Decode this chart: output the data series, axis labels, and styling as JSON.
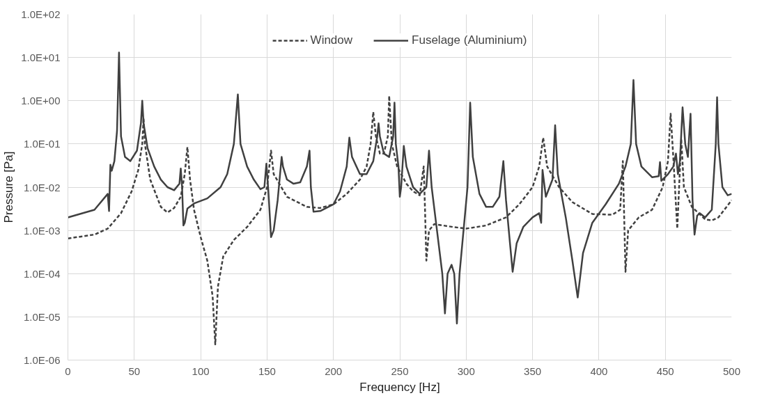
{
  "chart_data": {
    "type": "line",
    "xlabel": "Frequency [Hz]",
    "ylabel": "Pressure [Pa]",
    "log": "y",
    "grid": true,
    "legend": "top",
    "xlim": [
      0,
      500
    ],
    "xticks": [
      0,
      50,
      100,
      150,
      200,
      250,
      300,
      350,
      400,
      450,
      500
    ],
    "ylim": [
      1e-06,
      100
    ],
    "yticks": [
      {
        "value": 1e-06,
        "label": "1.0E-06"
      },
      {
        "value": 1e-05,
        "label": "1.0E-05"
      },
      {
        "value": 0.0001,
        "label": "1.0E-04"
      },
      {
        "value": 0.001,
        "label": "1.0E-03"
      },
      {
        "value": 0.01,
        "label": "1.0E-02"
      },
      {
        "value": 0.1,
        "label": "1.0E-01"
      },
      {
        "value": 1,
        "label": "1.0E+00"
      },
      {
        "value": 10,
        "label": "1.0E+01"
      },
      {
        "value": 100,
        "label": "1.0E+02"
      }
    ],
    "series": [
      {
        "name": "Window",
        "color": "#404040",
        "line_style": "dashed",
        "x": [
          0,
          20,
          30,
          40,
          48,
          53,
          56,
          57,
          58,
          62,
          70,
          75,
          80,
          85,
          88,
          90,
          92,
          95,
          100,
          105,
          109,
          111,
          113,
          117,
          125,
          135,
          145,
          150,
          153,
          155,
          165,
          180,
          190,
          200,
          210,
          220,
          225,
          228,
          230,
          232,
          235,
          238,
          241,
          242,
          244,
          248,
          255,
          260,
          265,
          268,
          269,
          270,
          272,
          276,
          290,
          300,
          315,
          330,
          340,
          350,
          355,
          358,
          361,
          370,
          380,
          395,
          410,
          416,
          418,
          420,
          422,
          430,
          440,
          448,
          452,
          454,
          456,
          459,
          462,
          464,
          470,
          480,
          485,
          490,
          500
        ],
        "values": [
          0.00065,
          0.0008,
          0.0011,
          0.0025,
          0.008,
          0.025,
          0.1,
          0.4,
          0.1,
          0.015,
          0.0035,
          0.0026,
          0.0033,
          0.006,
          0.02,
          0.085,
          0.015,
          0.003,
          0.0007,
          0.0002,
          3e-05,
          2.3e-06,
          5e-05,
          0.00025,
          0.0006,
          0.0012,
          0.003,
          0.01,
          0.07,
          0.02,
          0.006,
          0.0035,
          0.0033,
          0.004,
          0.007,
          0.015,
          0.03,
          0.1,
          0.55,
          0.15,
          0.06,
          0.06,
          0.15,
          1.3,
          0.1,
          0.03,
          0.012,
          0.008,
          0.0065,
          0.03,
          0.003,
          0.0002,
          0.001,
          0.0014,
          0.0012,
          0.0011,
          0.0013,
          0.002,
          0.004,
          0.01,
          0.03,
          0.14,
          0.03,
          0.01,
          0.0045,
          0.0024,
          0.0023,
          0.003,
          0.04,
          0.00011,
          0.001,
          0.002,
          0.003,
          0.01,
          0.04,
          0.5,
          0.05,
          0.0011,
          0.13,
          0.01,
          0.0035,
          0.0018,
          0.0017,
          0.002,
          0.005
        ]
      },
      {
        "name": "Fuselage (Aluminium)",
        "color": "#404040",
        "line_style": "solid",
        "x": [
          0,
          20,
          30,
          31,
          32,
          33,
          35,
          37,
          38.5,
          40,
          43,
          47,
          52,
          55,
          56,
          57,
          60,
          65,
          70,
          75,
          80,
          84,
          85,
          86,
          87,
          88,
          90,
          95,
          105,
          115,
          120,
          125,
          128,
          130,
          135,
          140,
          145,
          148,
          149.5,
          151,
          153,
          155,
          158,
          161,
          162,
          165,
          170,
          175,
          180,
          182,
          183,
          185,
          190,
          200,
          205,
          210,
          212,
          214,
          220,
          225,
          230,
          233,
          234,
          235,
          238,
          242,
          245,
          246,
          247,
          249,
          250,
          251,
          253,
          255,
          260,
          265,
          270,
          272,
          274,
          278,
          282,
          284,
          286,
          289,
          291,
          293,
          295,
          298,
          301,
          303,
          305,
          310,
          315,
          320,
          325,
          328,
          330,
          333,
          335,
          338,
          343,
          350,
          355,
          356.5,
          357.5,
          360,
          365,
          367,
          369,
          375,
          380,
          384,
          388,
          395,
          405,
          415,
          420,
          424,
          426,
          428,
          432,
          440,
          445,
          446,
          447,
          452,
          456,
          458,
          459.5,
          461,
          463,
          465,
          467,
          469,
          470.5,
          472,
          474,
          476,
          480,
          485,
          488,
          489,
          490,
          493,
          497,
          500
        ],
        "values": [
          0.002,
          0.003,
          0.007,
          0.0028,
          0.033,
          0.024,
          0.04,
          0.2,
          13,
          0.15,
          0.05,
          0.04,
          0.07,
          0.3,
          1.0,
          0.3,
          0.08,
          0.03,
          0.015,
          0.01,
          0.0085,
          0.012,
          0.027,
          0.01,
          0.0013,
          0.0015,
          0.0032,
          0.0042,
          0.0055,
          0.01,
          0.02,
          0.1,
          1.4,
          0.1,
          0.03,
          0.015,
          0.009,
          0.01,
          0.035,
          0.008,
          0.0007,
          0.001,
          0.005,
          0.05,
          0.03,
          0.015,
          0.012,
          0.013,
          0.03,
          0.07,
          0.01,
          0.0027,
          0.0028,
          0.004,
          0.008,
          0.03,
          0.14,
          0.05,
          0.02,
          0.02,
          0.04,
          0.15,
          0.3,
          0.15,
          0.06,
          0.05,
          0.15,
          0.9,
          0.1,
          0.03,
          0.006,
          0.01,
          0.09,
          0.03,
          0.01,
          0.007,
          0.01,
          0.07,
          0.01,
          0.001,
          0.0001,
          1.2e-05,
          0.0001,
          0.00016,
          0.0001,
          7e-06,
          0.0001,
          0.001,
          0.01,
          0.9,
          0.05,
          0.007,
          0.0035,
          0.0035,
          0.006,
          0.04,
          0.005,
          0.0005,
          0.00011,
          0.0005,
          0.0012,
          0.002,
          0.0025,
          0.0015,
          0.025,
          0.006,
          0.015,
          0.27,
          0.02,
          0.002,
          0.0002,
          2.8e-05,
          0.0003,
          0.0015,
          0.004,
          0.012,
          0.03,
          0.1,
          3,
          0.1,
          0.03,
          0.017,
          0.018,
          0.038,
          0.014,
          0.02,
          0.03,
          0.06,
          0.02,
          0.04,
          0.7,
          0.1,
          0.05,
          0.5,
          0.005,
          0.0008,
          0.0022,
          0.0025,
          0.002,
          0.003,
          0.1,
          1.2,
          0.1,
          0.01,
          0.0065,
          0.007
        ]
      }
    ]
  }
}
